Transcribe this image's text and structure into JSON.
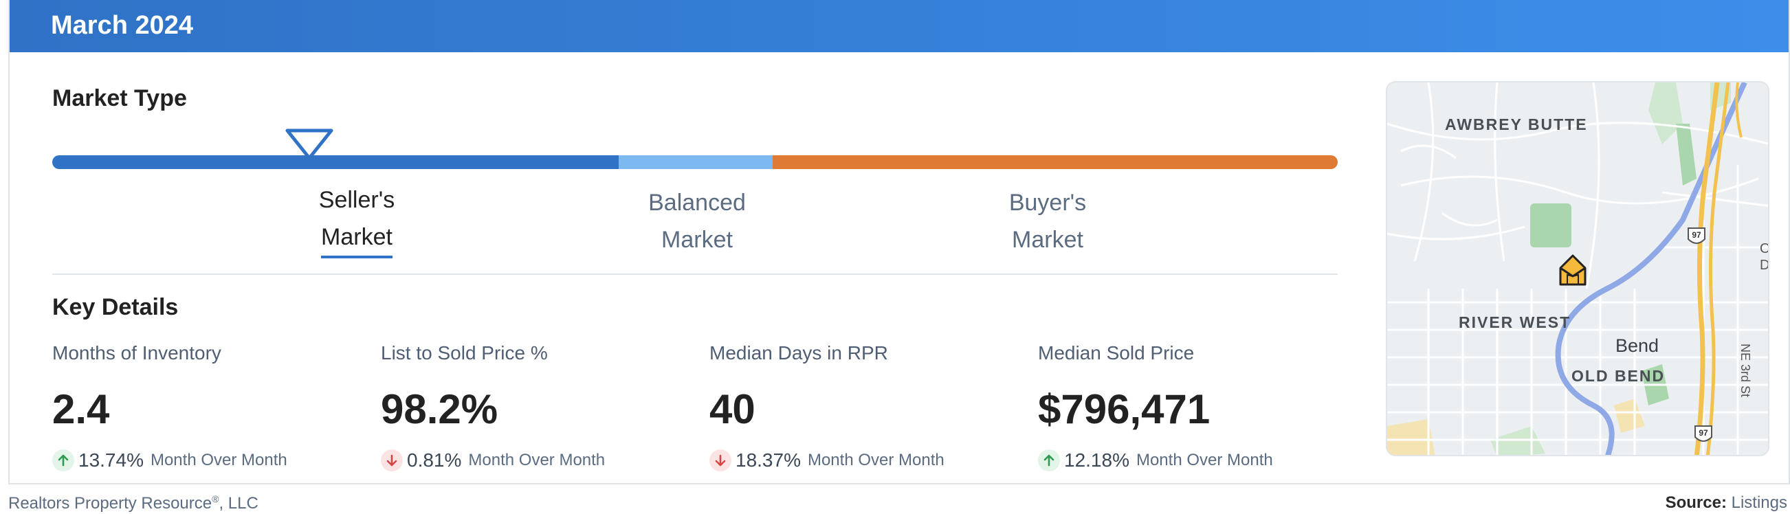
{
  "header": {
    "title": "March 2024"
  },
  "market_type": {
    "title": "Market Type",
    "seller": {
      "line1": "Seller's",
      "line2": "Market"
    },
    "balanced": {
      "line1": "Balanced",
      "line2": "Market"
    },
    "buyer": {
      "line1": "Buyer's",
      "line2": "Market"
    },
    "active": "seller",
    "indicator_position": 0.2,
    "colors": {
      "seller": "#2f72c6",
      "balanced": "#7db8f3",
      "buyer": "#de7a34"
    }
  },
  "key_details": {
    "title": "Key Details",
    "stats": [
      {
        "label": "Months of Inventory",
        "value": "2.4",
        "direction": "up",
        "pct": "13.74%",
        "period": "Month Over Month"
      },
      {
        "label": "List to Sold Price %",
        "value": "98.2%",
        "direction": "down",
        "pct": "0.81%",
        "period": "Month Over Month"
      },
      {
        "label": "Median Days in RPR",
        "value": "40",
        "direction": "down",
        "pct": "18.37%",
        "period": "Month Over Month"
      },
      {
        "label": "Median Sold Price",
        "value": "$796,471",
        "direction": "up",
        "pct": "12.18%",
        "period": "Month Over Month"
      }
    ],
    "colors": {
      "up": "#2e9b4e",
      "down": "#d64545"
    }
  },
  "map": {
    "labels": [
      "AWBREY BUTTE",
      "RIVER WEST",
      "OLD BEND"
    ],
    "city": "Bend",
    "street": "NE 3rd St",
    "highway": "97",
    "edge_text": [
      "O",
      "D"
    ],
    "icons": [
      "home-marker-icon",
      "highway-shield-icon"
    ]
  },
  "footer": {
    "left": "Realtors Property Resource",
    "left_mark": "®",
    "left_suffix": ", LLC",
    "right_label": "Source:",
    "right_value": "Listings"
  }
}
